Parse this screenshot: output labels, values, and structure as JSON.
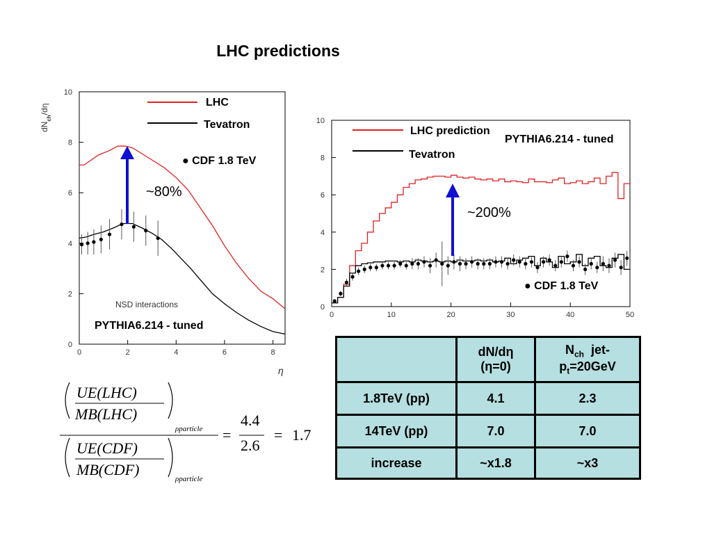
{
  "title": "LHC predictions",
  "left_chart": {
    "legend_lhc": "LHC",
    "legend_tev": "Tevatron",
    "cdf_label": "● CDF 1.8 TeV",
    "arrow_label": "~80%",
    "nsd_label": "NSD interactions",
    "pythia_label": "PYTHIA6.214 - tuned",
    "ylabel": "dN",
    "ylabel_sub": "ch",
    "ylabel_tail": "/dη",
    "xlabel": "η",
    "xticks": [
      "0",
      "2",
      "4",
      "6",
      "8"
    ],
    "yticks": [
      "0",
      "2",
      "4",
      "6",
      "8",
      "10"
    ]
  },
  "right_chart": {
    "legend_lhc": "LHC prediction",
    "legend_tev": "Tevatron",
    "pythia_label": "PYTHIA6.214 - tuned",
    "arrow_label": "~200%",
    "cdf_label": "● CDF 1.8 TeV",
    "xticks": [
      "0",
      "10",
      "20",
      "30",
      "40",
      "50"
    ],
    "yticks": [
      "0",
      "2",
      "4",
      "6",
      "8",
      "10"
    ]
  },
  "chart_data": [
    {
      "type": "line",
      "xlim": [
        0,
        8.5
      ],
      "ylim": [
        0,
        10
      ],
      "series": [
        {
          "name": "LHC",
          "color": "#e02020",
          "x": [
            0,
            0.2,
            0.5,
            0.8,
            1.2,
            1.6,
            1.9,
            2.2,
            2.5,
            3.0,
            3.5,
            4.0,
            4.5,
            5.0,
            5.5,
            6.0,
            6.5,
            7.0,
            7.5,
            8.0,
            8.5
          ],
          "y": [
            7.1,
            7.1,
            7.3,
            7.5,
            7.65,
            7.85,
            7.85,
            7.78,
            7.6,
            7.3,
            7.0,
            6.6,
            6.1,
            5.4,
            4.7,
            3.9,
            3.2,
            2.6,
            2.1,
            1.8,
            1.4
          ]
        },
        {
          "name": "Tevatron",
          "color": "#000000",
          "x": [
            0,
            0.3,
            0.6,
            1.0,
            1.4,
            1.8,
            2.2,
            2.6,
            3.0,
            3.4,
            3.8,
            4.2,
            4.6,
            5.0,
            5.5,
            6.0,
            6.5,
            7.0,
            7.5,
            8.0,
            8.5
          ],
          "y": [
            4.2,
            4.25,
            4.35,
            4.45,
            4.6,
            4.78,
            4.78,
            4.6,
            4.4,
            4.15,
            3.8,
            3.4,
            3.0,
            2.55,
            2.0,
            1.6,
            1.25,
            0.95,
            0.7,
            0.5,
            0.4
          ]
        },
        {
          "name": "CDF 1.8 TeV",
          "type": "scatter",
          "color": "#000000",
          "x": [
            0.1,
            0.35,
            0.6,
            0.9,
            1.25,
            1.75,
            2.25,
            2.75,
            3.25
          ],
          "y": [
            3.95,
            4.0,
            4.05,
            4.15,
            4.35,
            4.75,
            4.65,
            4.5,
            4.2
          ],
          "err": [
            0.4,
            0.45,
            0.5,
            0.55,
            0.6,
            0.6,
            0.6,
            0.6,
            0.7
          ]
        }
      ]
    },
    {
      "type": "line",
      "xlim": [
        0,
        50
      ],
      "ylim": [
        0,
        10
      ],
      "series": [
        {
          "name": "LHC prediction",
          "color": "#e02020",
          "step": true,
          "x": [
            0,
            1,
            2,
            3,
            4,
            5,
            6,
            7,
            8,
            9,
            10,
            11,
            12,
            13,
            14,
            15,
            16,
            17,
            18,
            19,
            20,
            21,
            22,
            23,
            24,
            25,
            26,
            27,
            28,
            29,
            30,
            31,
            32,
            33,
            34,
            35,
            36,
            37,
            38,
            39,
            40,
            41,
            42,
            43,
            44,
            45,
            46,
            47,
            48,
            49,
            50
          ],
          "y": [
            0.2,
            0.5,
            1.2,
            2.2,
            3.0,
            3.4,
            4.0,
            4.6,
            5.0,
            5.3,
            5.6,
            6.0,
            6.4,
            6.6,
            6.8,
            6.85,
            6.95,
            7.0,
            7.0,
            6.95,
            7.05,
            6.95,
            6.9,
            6.95,
            6.85,
            6.8,
            6.85,
            6.75,
            6.85,
            6.7,
            6.75,
            6.7,
            6.65,
            6.85,
            6.7,
            6.7,
            6.65,
            6.8,
            6.9,
            6.6,
            6.65,
            6.75,
            6.6,
            6.7,
            6.9,
            6.6,
            7.0,
            7.2,
            5.8,
            6.6,
            6.6
          ]
        },
        {
          "name": "Tevatron",
          "color": "#000000",
          "step": true,
          "x": [
            0,
            1,
            2,
            3,
            4,
            5,
            6,
            7,
            8,
            9,
            10,
            11,
            12,
            13,
            14,
            15,
            16,
            17,
            18,
            19,
            20,
            21,
            22,
            23,
            24,
            25,
            26,
            27,
            28,
            29,
            30,
            31,
            32,
            33,
            34,
            35,
            36,
            37,
            38,
            39,
            40,
            41,
            42,
            43,
            44,
            45,
            46,
            47,
            48,
            49,
            50
          ],
          "y": [
            0.2,
            0.5,
            1.1,
            1.8,
            2.2,
            2.3,
            2.35,
            2.4,
            2.4,
            2.45,
            2.45,
            2.4,
            2.45,
            2.4,
            2.5,
            2.45,
            2.4,
            2.45,
            2.4,
            2.45,
            2.4,
            2.5,
            2.45,
            2.45,
            2.5,
            2.45,
            2.5,
            2.4,
            2.45,
            2.6,
            2.3,
            2.5,
            2.6,
            2.7,
            2.2,
            2.6,
            2.4,
            2.1,
            2.7,
            2.3,
            2.4,
            2.8,
            2.2,
            2.6,
            2.7,
            2.2,
            2.1,
            2.6,
            2.8,
            2.0,
            2.0
          ]
        },
        {
          "name": "CDF 1.8 TeV",
          "type": "scatter",
          "color": "#000000",
          "x": [
            0.5,
            1.5,
            2.5,
            3.5,
            4.5,
            5.5,
            6.5,
            7.5,
            8.5,
            9.5,
            10.5,
            11.5,
            12.5,
            13.5,
            14.5,
            15.5,
            16.5,
            17.5,
            18.5,
            19.5,
            20.5,
            21.5,
            22.5,
            23.5,
            24.5,
            25.5,
            26.5,
            27.5,
            28.5,
            29.5,
            30.5,
            31.5,
            32.5,
            33.5,
            34.5,
            35.5,
            36.5,
            37.5,
            38.5,
            39.5,
            40.5,
            41.5,
            42.5,
            43.5,
            44.5,
            45.5,
            46.5,
            47.5,
            48.5,
            49.5
          ],
          "y": [
            0.3,
            0.7,
            1.3,
            1.6,
            1.9,
            2.0,
            2.1,
            2.1,
            2.2,
            2.2,
            2.2,
            2.3,
            2.2,
            2.3,
            2.3,
            2.4,
            2.2,
            2.5,
            2.3,
            2.2,
            2.4,
            2.3,
            2.3,
            2.4,
            2.3,
            2.3,
            2.3,
            2.4,
            2.4,
            2.3,
            2.5,
            2.4,
            2.3,
            2.4,
            2.1,
            2.4,
            2.5,
            2.2,
            2.4,
            2.7,
            2.2,
            2.4,
            2.0,
            2.3,
            2.1,
            2.3,
            2.2,
            2.5,
            2.1,
            2.6
          ],
          "err": [
            0.1,
            0.15,
            0.2,
            0.2,
            0.2,
            0.2,
            0.2,
            0.2,
            0.2,
            0.2,
            0.2,
            0.2,
            0.2,
            0.3,
            0.3,
            0.3,
            0.4,
            0.4,
            1.2,
            0.5,
            0.4,
            0.4,
            0.3,
            0.3,
            0.3,
            0.3,
            0.3,
            0.3,
            0.3,
            0.3,
            0.3,
            0.3,
            0.3,
            0.3,
            0.3,
            0.3,
            0.3,
            0.3,
            0.3,
            0.3,
            0.3,
            0.3,
            0.3,
            0.3,
            0.3,
            0.4,
            0.4,
            0.4,
            0.4,
            0.4
          ]
        }
      ]
    },
    {
      "type": "table",
      "columns": [
        "",
        "dN/dη (η=0)",
        "Nch jet-pt=20GeV"
      ],
      "rows": [
        [
          "1.8TeV (pp)",
          "4.1",
          "2.3"
        ],
        [
          "14TeV (pp)",
          "7.0",
          "7.0"
        ],
        [
          "increase",
          "~x1.8",
          "~x3"
        ]
      ]
    }
  ],
  "table": {
    "col1_line1": "dN/dη",
    "col1_line2": "(η=0)",
    "col2_n": "N",
    "col2_sub": "ch",
    "col2_rest": "  jet-",
    "col2_p": "p",
    "col2_psub": "t",
    "col2_tail": "=20GeV",
    "rows": [
      {
        "label": "1.8TeV (pp)",
        "a": "4.1",
        "b": "2.3"
      },
      {
        "label": "14TeV (pp)",
        "a": "7.0",
        "b": "7.0"
      },
      {
        "label": "increase",
        "a": "~x1.8",
        "b": "~x3"
      }
    ]
  },
  "formula": {
    "num_top": "UE(LHC)",
    "num_bot": "MB(LHC)",
    "den_top": "UE(CDF)",
    "den_bot": "MB(CDF)",
    "subscript": "ρparticle",
    "eq1": "=",
    "frac_top": "4.4",
    "frac_bot": "2.6",
    "eq2": "=",
    "result": "1.7"
  }
}
